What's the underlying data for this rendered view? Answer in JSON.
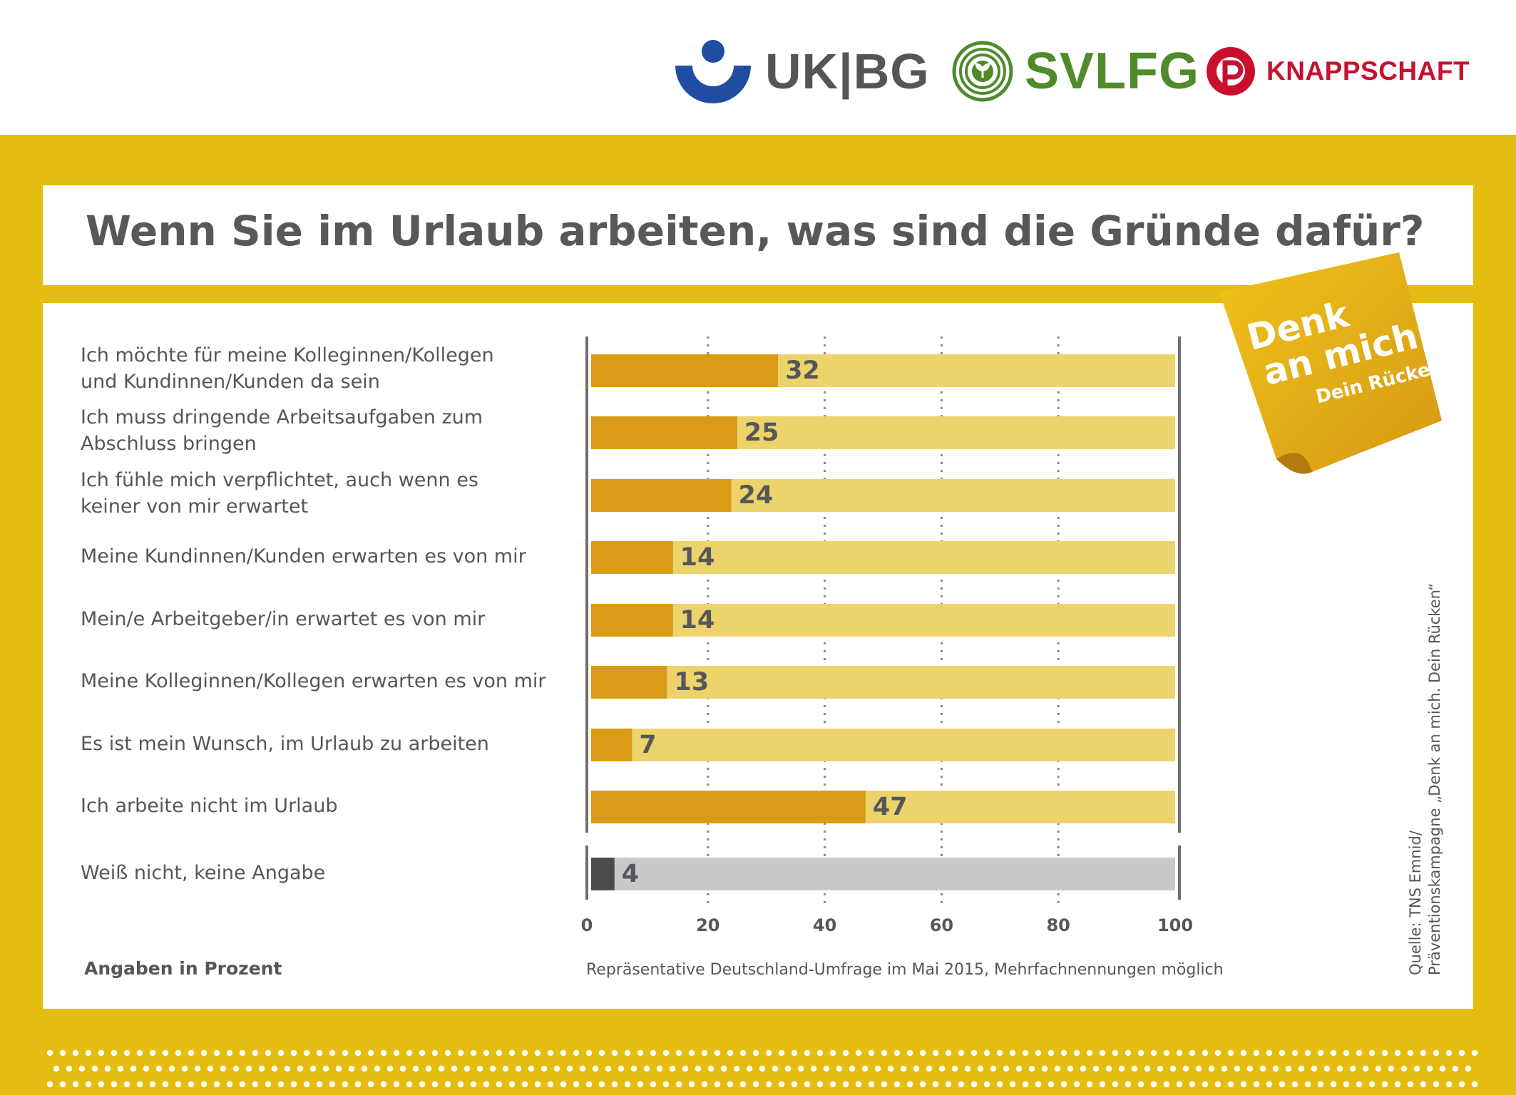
{
  "logos": {
    "ukbg": "UK|BG",
    "svlfg": "SVLFG",
    "knappschaft": "KNAPPSCHAFT"
  },
  "sticky_note": {
    "line1": "Denk",
    "line2": "an mich",
    "line3": "Dein Rücken"
  },
  "colors": {
    "frame": "#e5bd10",
    "bar_value": "#da9c17",
    "bar_track": "#edd36b",
    "bar_value_dk": "#4d4d50",
    "bar_track_dk": "#c8c9cb"
  },
  "notes": {
    "unit": "Angaben in Prozent",
    "survey": "Repräsentative Deutschland-Umfrage im Mai 2015, Mehrfachnennungen möglich",
    "source_line1": "Quelle: TNS Emnid/",
    "source_line2": "Präventionskampagne „Denk an mich. Dein Rücken“"
  },
  "chart_data": {
    "type": "bar",
    "orientation": "horizontal",
    "title": "Wenn Sie im Urlaub arbeiten, was sind die Gründe dafür?",
    "xlim": [
      0,
      100
    ],
    "xticks": [
      0,
      20,
      40,
      60,
      80,
      100
    ],
    "grid": "dotted vertical at 20, 40, 60, 80",
    "categories": [
      "Ich möchte für meine Kolleginnen/Kollegen\nund Kundinnen/Kunden da sein",
      "Ich muss dringende Arbeitsaufgaben zum\nAbschluss bringen",
      "Ich fühle mich verpflichtet, auch wenn es\nkeiner von mir erwartet",
      "Meine Kundinnen/Kunden erwarten es von mir",
      "Mein/e Arbeitgeber/in erwartet es von mir",
      "Meine Kolleginnen/Kollegen erwarten es von mir",
      "Es ist mein Wunsch, im Urlaub zu arbeiten",
      "Ich arbeite nicht im Urlaub",
      "Weiß nicht, keine Angabe"
    ],
    "values": [
      32,
      25,
      24,
      14,
      14,
      13,
      7,
      47,
      4
    ]
  }
}
